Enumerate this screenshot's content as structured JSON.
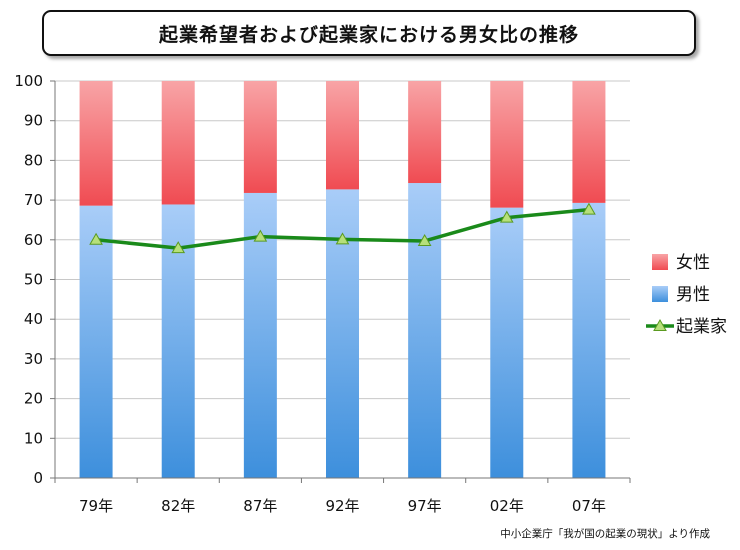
{
  "chart_data": {
    "type": "bar",
    "stacked": true,
    "title": "起業希望者および起業家における男女比の推移",
    "categories": [
      "79年",
      "82年",
      "87年",
      "92年",
      "97年",
      "02年",
      "07年"
    ],
    "series": [
      {
        "name": "男性",
        "kind": "bar",
        "values": [
          68.6,
          68.9,
          71.8,
          72.7,
          74.3,
          68.1,
          69.3
        ]
      },
      {
        "name": "女性",
        "kind": "bar",
        "values": [
          31.4,
          31.1,
          28.2,
          27.3,
          25.7,
          31.9,
          30.7
        ]
      },
      {
        "name": "起業家",
        "kind": "line",
        "values": [
          60.0,
          57.9,
          60.8,
          60.1,
          59.7,
          65.6,
          67.6
        ]
      }
    ],
    "ylim": [
      0,
      100
    ],
    "yticks": [
      0,
      10,
      20,
      30,
      40,
      50,
      60,
      70,
      80,
      90,
      100
    ],
    "grid": true,
    "legend": "right",
    "legend_items": [
      {
        "label": "女性",
        "color": "#f5686c"
      },
      {
        "label": "男性",
        "color": "#7fb0ee"
      },
      {
        "label": "起業家",
        "color": "#1a8a1a"
      }
    ],
    "colors": {
      "female": "#f5686c",
      "male": "#7fb0ee",
      "line": "#1a8a1a",
      "marker": "#b6e07a"
    }
  },
  "source": "中小企業庁「我が国の起業の現状」より作成"
}
